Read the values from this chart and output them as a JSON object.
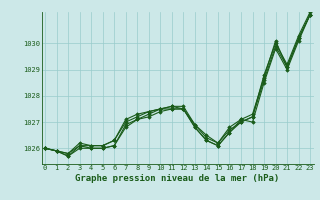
{
  "bg_color": "#cce8e8",
  "grid_color": "#99cccc",
  "line_color": "#1a5c1a",
  "x": [
    0,
    1,
    2,
    3,
    4,
    5,
    6,
    7,
    8,
    9,
    10,
    11,
    12,
    13,
    14,
    15,
    16,
    17,
    18,
    19,
    20,
    21,
    22,
    23
  ],
  "series": [
    [
      1026.0,
      1025.9,
      1025.7,
      1026.1,
      1026.0,
      1026.0,
      1026.1,
      1026.9,
      1027.1,
      1027.3,
      1027.5,
      1027.5,
      1027.5,
      1026.9,
      1026.4,
      1026.2,
      1026.7,
      1027.0,
      1027.2,
      1028.8,
      1030.0,
      1029.2,
      1030.3,
      1031.2
    ],
    [
      1026.0,
      1025.9,
      1025.8,
      1026.1,
      1026.1,
      1026.1,
      1026.3,
      1027.0,
      1027.2,
      1027.4,
      1027.5,
      1027.6,
      1027.5,
      1026.8,
      1026.3,
      1026.1,
      1026.6,
      1027.1,
      1027.0,
      1028.5,
      1029.8,
      1029.0,
      1030.1,
      1031.1
    ],
    [
      1026.0,
      1025.9,
      1025.8,
      1026.2,
      1026.1,
      1026.1,
      1026.3,
      1027.1,
      1027.3,
      1027.4,
      1027.5,
      1027.6,
      1027.6,
      1026.9,
      1026.5,
      1026.2,
      1026.8,
      1027.1,
      1027.3,
      1028.7,
      1030.1,
      1029.1,
      1030.2,
      1031.1
    ],
    [
      1026.0,
      1025.9,
      1025.7,
      1026.0,
      1026.0,
      1026.0,
      1026.1,
      1026.8,
      1027.1,
      1027.2,
      1027.4,
      1027.5,
      1027.5,
      1026.8,
      1026.3,
      1026.1,
      1026.6,
      1027.0,
      1027.2,
      1028.6,
      1029.9,
      1029.1,
      1030.2,
      1031.1
    ]
  ],
  "ylim": [
    1025.4,
    1031.2
  ],
  "xlim": [
    -0.3,
    23.3
  ],
  "yticks": [
    1026,
    1027,
    1028,
    1029,
    1030
  ],
  "xticks": [
    0,
    1,
    2,
    3,
    4,
    5,
    6,
    7,
    8,
    9,
    10,
    11,
    12,
    13,
    14,
    15,
    16,
    17,
    18,
    19,
    20,
    21,
    22,
    23
  ],
  "xlabel": "Graphe pression niveau de la mer (hPa)",
  "marker": "D",
  "markersize": 1.8,
  "linewidth": 0.8,
  "tick_fontsize": 5.0,
  "label_fontsize": 6.5,
  "label_fontweight": "bold"
}
